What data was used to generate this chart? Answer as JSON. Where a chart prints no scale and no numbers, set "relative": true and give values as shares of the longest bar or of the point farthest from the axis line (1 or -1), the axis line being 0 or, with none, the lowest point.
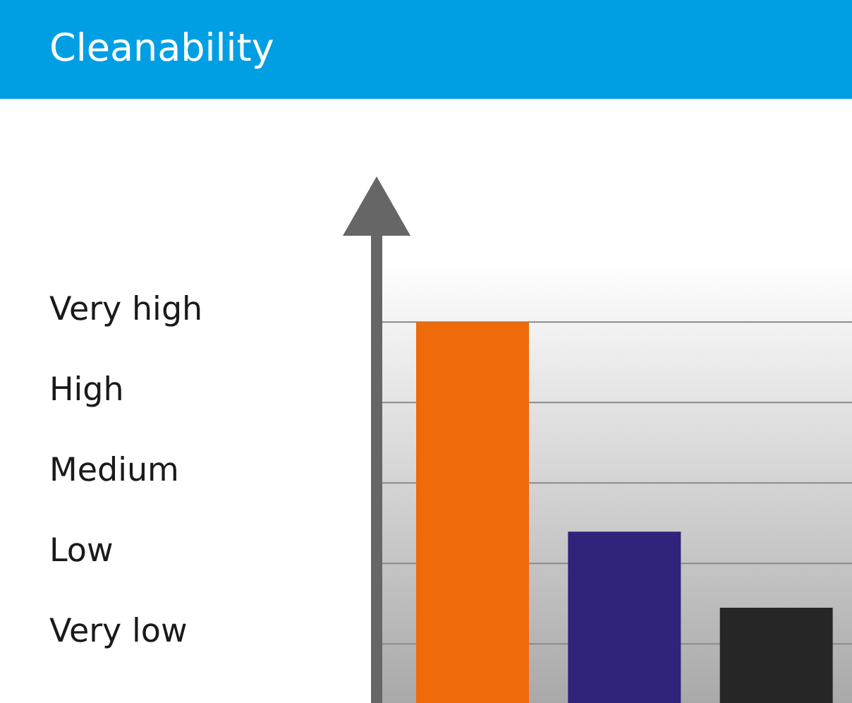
{
  "chart_data": {
    "type": "bar",
    "title": "Cleanability",
    "categories": [
      null,
      null,
      null
    ],
    "values": [
      1,
      0.45,
      0.25
    ],
    "colors": [
      "#ee6a0a",
      "#30237a",
      "#262626"
    ],
    "relative": true,
    "annotations": [
      "Very high",
      "High",
      "Medium",
      "Low",
      "Very low"
    ],
    "grid": "y"
  }
}
